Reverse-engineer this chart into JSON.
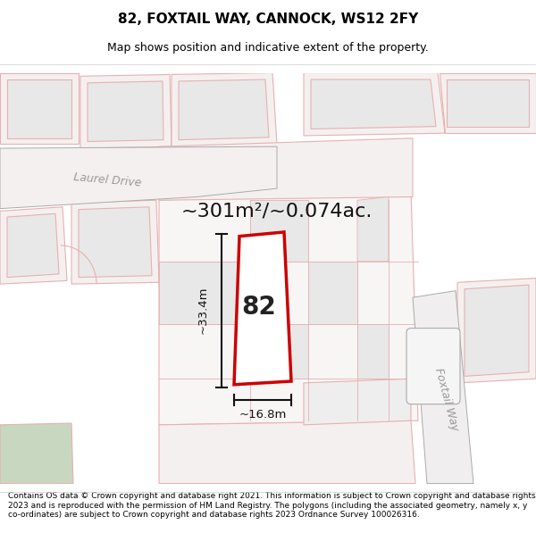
{
  "title": "82, FOXTAIL WAY, CANNOCK, WS12 2FY",
  "subtitle": "Map shows position and indicative extent of the property.",
  "area_label": "~301m²/~0.074ac.",
  "width_label": "~16.8m",
  "height_label": "~33.4m",
  "plot_number": "82",
  "footer": "Contains OS data © Crown copyright and database right 2021. This information is subject to Crown copyright and database rights 2023 and is reproduced with the permission of HM Land Registry. The polygons (including the associated geometry, namely x, y co-ordinates) are subject to Crown copyright and database rights 2023 Ordnance Survey 100026316.",
  "plot_fill": "#ffffff",
  "plot_outline": "#cc0000",
  "map_bg": "#ffffff",
  "parcel_fill": "#eeeeee",
  "parcel_edge": "#e8b0b0",
  "road_edge": "#aaaaaa",
  "dim_color": "#111111",
  "title_fontsize": 11,
  "subtitle_fontsize": 9,
  "area_fontsize": 16,
  "plot_number_fontsize": 20,
  "footer_fontsize": 6.5,
  "street_fontsize": 9
}
